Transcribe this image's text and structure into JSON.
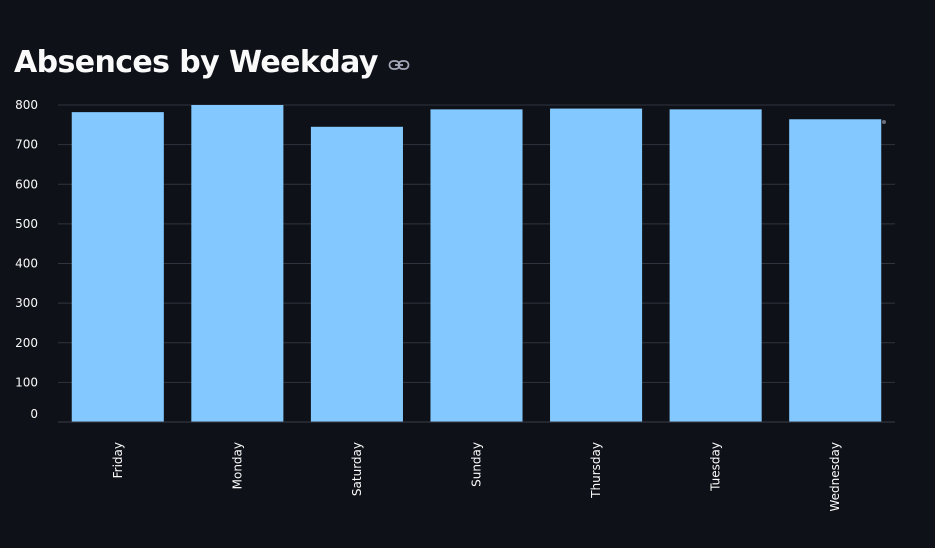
{
  "page": {
    "title": "Absences by Weekday",
    "link_icon": "link-icon",
    "menu_icon": "more-horizontal-icon"
  },
  "colors": {
    "background": "#0e1117",
    "bar": "#83c9ff",
    "grid": "#31333f",
    "text": "#fafafa",
    "icon": "#a3a8b8"
  },
  "chart_data": {
    "type": "bar",
    "categories": [
      "Friday",
      "Monday",
      "Saturday",
      "Sunday",
      "Thursday",
      "Tuesday",
      "Wednesday"
    ],
    "values": [
      782,
      800,
      745,
      789,
      791,
      789,
      764
    ],
    "title": "",
    "xlabel": "",
    "ylabel": "",
    "ylim": [
      0,
      800
    ],
    "yticks": [
      0,
      100,
      200,
      300,
      400,
      500,
      600,
      700,
      800
    ],
    "grid": true,
    "legend": "none"
  }
}
